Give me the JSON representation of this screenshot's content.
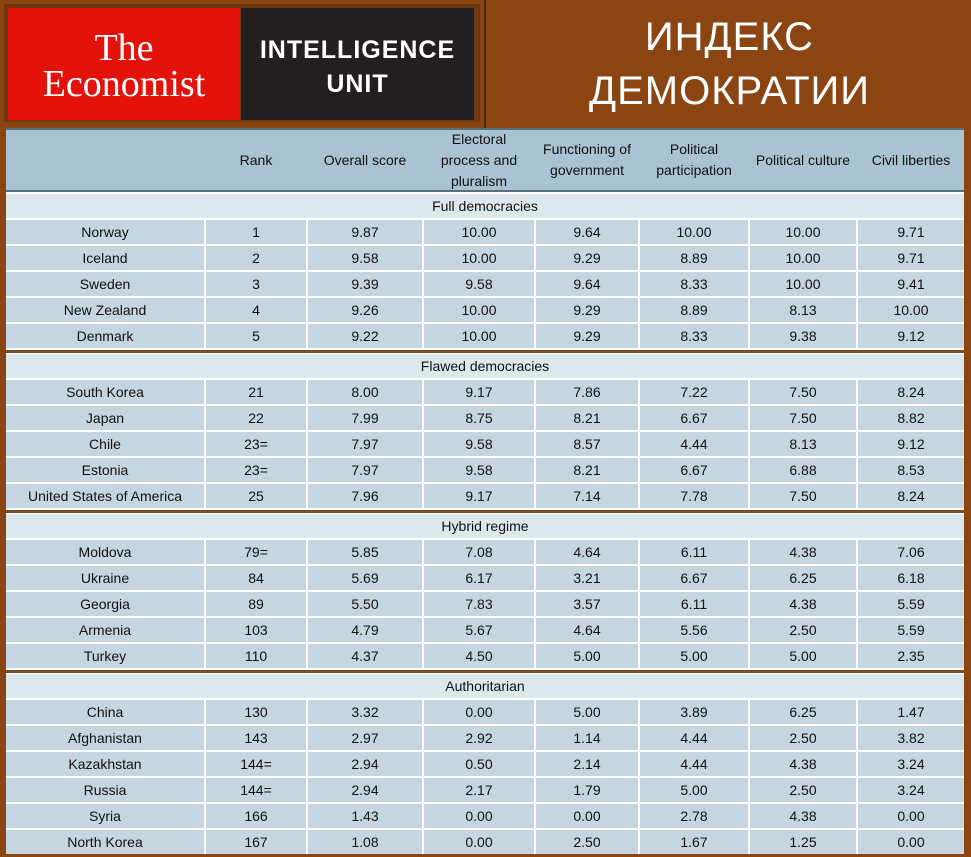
{
  "header": {
    "logo_line1": "The",
    "logo_line2": "Economist",
    "unit_line1": "INTELLIGENCE",
    "unit_line2": "UNIT",
    "title_line1": "ИНДЕКС",
    "title_line2": "ДЕМОКРАТИИ"
  },
  "colors": {
    "background": "#8b4513",
    "economist_red": "#e3120b",
    "unit_dark": "#231f20",
    "header_row": "#a9c3d2",
    "cell": "#c5d6e0"
  },
  "chart_data": {
    "type": "table",
    "columns": [
      "",
      "Rank",
      "Overall score",
      "Electoral process and pluralism",
      "Functioning of government",
      "Political participation",
      "Political culture",
      "Civil liberties"
    ],
    "sections": [
      {
        "name": "Full democracies",
        "rows": [
          [
            "Norway",
            "1",
            "9.87",
            "10.00",
            "9.64",
            "10.00",
            "10.00",
            "9.71"
          ],
          [
            "Iceland",
            "2",
            "9.58",
            "10.00",
            "9.29",
            "8.89",
            "10.00",
            "9.71"
          ],
          [
            "Sweden",
            "3",
            "9.39",
            "9.58",
            "9.64",
            "8.33",
            "10.00",
            "9.41"
          ],
          [
            "New Zealand",
            "4",
            "9.26",
            "10.00",
            "9.29",
            "8.89",
            "8.13",
            "10.00"
          ],
          [
            "Denmark",
            "5",
            "9.22",
            "10.00",
            "9.29",
            "8.33",
            "9.38",
            "9.12"
          ]
        ]
      },
      {
        "name": "Flawed democracies",
        "rows": [
          [
            "South Korea",
            "21",
            "8.00",
            "9.17",
            "7.86",
            "7.22",
            "7.50",
            "8.24"
          ],
          [
            "Japan",
            "22",
            "7.99",
            "8.75",
            "8.21",
            "6.67",
            "7.50",
            "8.82"
          ],
          [
            "Chile",
            "23=",
            "7.97",
            "9.58",
            "8.57",
            "4.44",
            "8.13",
            "9.12"
          ],
          [
            "Estonia",
            "23=",
            "7.97",
            "9.58",
            "8.21",
            "6.67",
            "6.88",
            "8.53"
          ],
          [
            "United States of America",
            "25",
            "7.96",
            "9.17",
            "7.14",
            "7.78",
            "7.50",
            "8.24"
          ]
        ]
      },
      {
        "name": "Hybrid regime",
        "rows": [
          [
            "Moldova",
            "79=",
            "5.85",
            "7.08",
            "4.64",
            "6.11",
            "4.38",
            "7.06"
          ],
          [
            "Ukraine",
            "84",
            "5.69",
            "6.17",
            "3.21",
            "6.67",
            "6.25",
            "6.18"
          ],
          [
            "Georgia",
            "89",
            "5.50",
            "7.83",
            "3.57",
            "6.11",
            "4.38",
            "5.59"
          ],
          [
            "Armenia",
            "103",
            "4.79",
            "5.67",
            "4.64",
            "5.56",
            "2.50",
            "5.59"
          ],
          [
            "Turkey",
            "110",
            "4.37",
            "4.50",
            "5.00",
            "5.00",
            "5.00",
            "2.35"
          ]
        ]
      },
      {
        "name": "Authoritarian",
        "rows": [
          [
            "China",
            "130",
            "3.32",
            "0.00",
            "5.00",
            "3.89",
            "6.25",
            "1.47"
          ],
          [
            "Afghanistan",
            "143",
            "2.97",
            "2.92",
            "1.14",
            "4.44",
            "2.50",
            "3.82"
          ],
          [
            "Kazakhstan",
            "144=",
            "2.94",
            "0.50",
            "2.14",
            "4.44",
            "4.38",
            "3.24"
          ],
          [
            "Russia",
            "144=",
            "2.94",
            "2.17",
            "1.79",
            "5.00",
            "2.50",
            "3.24"
          ],
          [
            "Syria",
            "166",
            "1.43",
            "0.00",
            "0.00",
            "2.78",
            "4.38",
            "0.00"
          ],
          [
            "North Korea",
            "167",
            "1.08",
            "0.00",
            "2.50",
            "1.67",
            "1.25",
            "0.00"
          ]
        ]
      }
    ]
  }
}
